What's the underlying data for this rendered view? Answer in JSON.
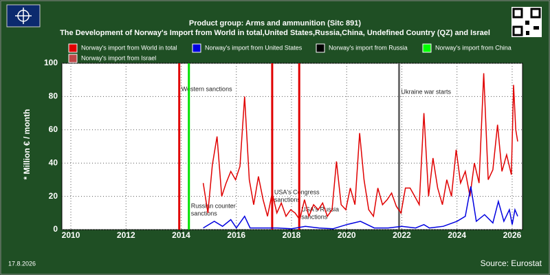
{
  "chart_data": {
    "type": "line",
    "title": "Product group: Arms and ammunition (Sitc 891)",
    "subtitle": "The Development of Norway's Import from World in total,United States,Russia,China, Undefined Country (QZ) and Israel",
    "ylabel": "* Million € / month",
    "date": "17.8.2026",
    "source": "Source: Eurostat",
    "xlim": [
      2009.675,
      2026.375
    ],
    "xticks": [
      2010,
      2012,
      2014,
      2016,
      2018,
      2020,
      2022,
      2024,
      2026
    ],
    "ylim": [
      0,
      100
    ],
    "yticks": [
      0,
      20,
      40,
      60,
      80,
      100
    ],
    "grid": true,
    "annotations": [
      {
        "x": 2013.93,
        "color": "#e00000",
        "lines": [
          "Western sanctions"
        ]
      },
      {
        "x": 2014.28,
        "color": "#00e000",
        "lines": [
          "Russian counter",
          "sanctions"
        ]
      },
      {
        "x": 2017.3,
        "color": "#e00000",
        "lines": [
          "USA's Congress",
          "sanctions"
        ]
      },
      {
        "x": 2018.28,
        "color": "#e00000",
        "lines": [
          "USA's Russia",
          "sanctions"
        ]
      },
      {
        "x": 2021.9,
        "color": "#707070",
        "lines": [
          "Ukraine war starts"
        ]
      }
    ],
    "series": [
      {
        "name": "Norway's import from World in total",
        "color": "#e00000",
        "x": [
          2014.8,
          2014.97,
          2015.13,
          2015.3,
          2015.47,
          2015.63,
          2015.8,
          2015.97,
          2016.13,
          2016.3,
          2016.47,
          2016.63,
          2016.8,
          2016.97,
          2017.13,
          2017.3,
          2017.47,
          2017.63,
          2017.8,
          2017.97,
          2018.13,
          2018.3,
          2018.47,
          2018.63,
          2018.8,
          2018.97,
          2019.13,
          2019.3,
          2019.47,
          2019.63,
          2019.8,
          2019.97,
          2020.13,
          2020.3,
          2020.47,
          2020.63,
          2020.8,
          2020.97,
          2021.13,
          2021.3,
          2021.47,
          2021.63,
          2021.8,
          2021.97,
          2022.13,
          2022.3,
          2022.47,
          2022.63,
          2022.8,
          2022.97,
          2023.13,
          2023.3,
          2023.47,
          2023.63,
          2023.8,
          2023.97,
          2024.13,
          2024.3,
          2024.47,
          2024.63,
          2024.8,
          2024.97,
          2025.13,
          2025.3,
          2025.47,
          2025.63,
          2025.8,
          2025.97,
          2026.05,
          2026.13,
          2026.2
        ],
        "values": [
          28,
          10,
          39,
          56,
          20,
          28,
          35,
          30,
          38,
          80,
          30,
          15,
          32,
          18,
          8,
          22,
          10,
          16,
          8,
          12,
          10,
          6,
          18,
          8,
          15,
          12,
          16,
          8,
          12,
          41,
          15,
          12,
          25,
          15,
          58,
          30,
          12,
          8,
          25,
          15,
          18,
          22,
          14,
          10,
          25,
          25,
          20,
          15,
          70,
          20,
          43,
          25,
          15,
          30,
          20,
          48,
          28,
          35,
          20,
          40,
          28,
          94,
          30,
          36,
          63,
          35,
          45,
          33,
          87,
          60,
          53
        ]
      },
      {
        "name": "Norway's import from United States",
        "color": "#0000e0",
        "x": [
          2014.8,
          2015.2,
          2015.5,
          2015.8,
          2016.0,
          2016.3,
          2016.5,
          2017.0,
          2017.5,
          2018.0,
          2018.5,
          2019.0,
          2019.5,
          2020.0,
          2020.5,
          2021.0,
          2021.5,
          2022.0,
          2022.5,
          2022.8,
          2023.0,
          2023.5,
          2024.0,
          2024.3,
          2024.5,
          2024.7,
          2025.0,
          2025.3,
          2025.5,
          2025.7,
          2025.9,
          2026.0,
          2026.1,
          2026.2
        ],
        "values": [
          1,
          5,
          2,
          6,
          1,
          8,
          1,
          1,
          1,
          0.5,
          2,
          1,
          0.5,
          3,
          5,
          1,
          1,
          2,
          1,
          3,
          1,
          2,
          5,
          8,
          26,
          5,
          9,
          4,
          17,
          5,
          12,
          3,
          12,
          8
        ]
      },
      {
        "name": "Norway's import from Russia",
        "color": "#000000",
        "x": [],
        "values": []
      },
      {
        "name": "Norway's import from China",
        "color": "#00ff00",
        "x": [],
        "values": []
      },
      {
        "name": "Norway's import from Israel",
        "color": "#c04848",
        "x": [],
        "values": []
      }
    ]
  }
}
